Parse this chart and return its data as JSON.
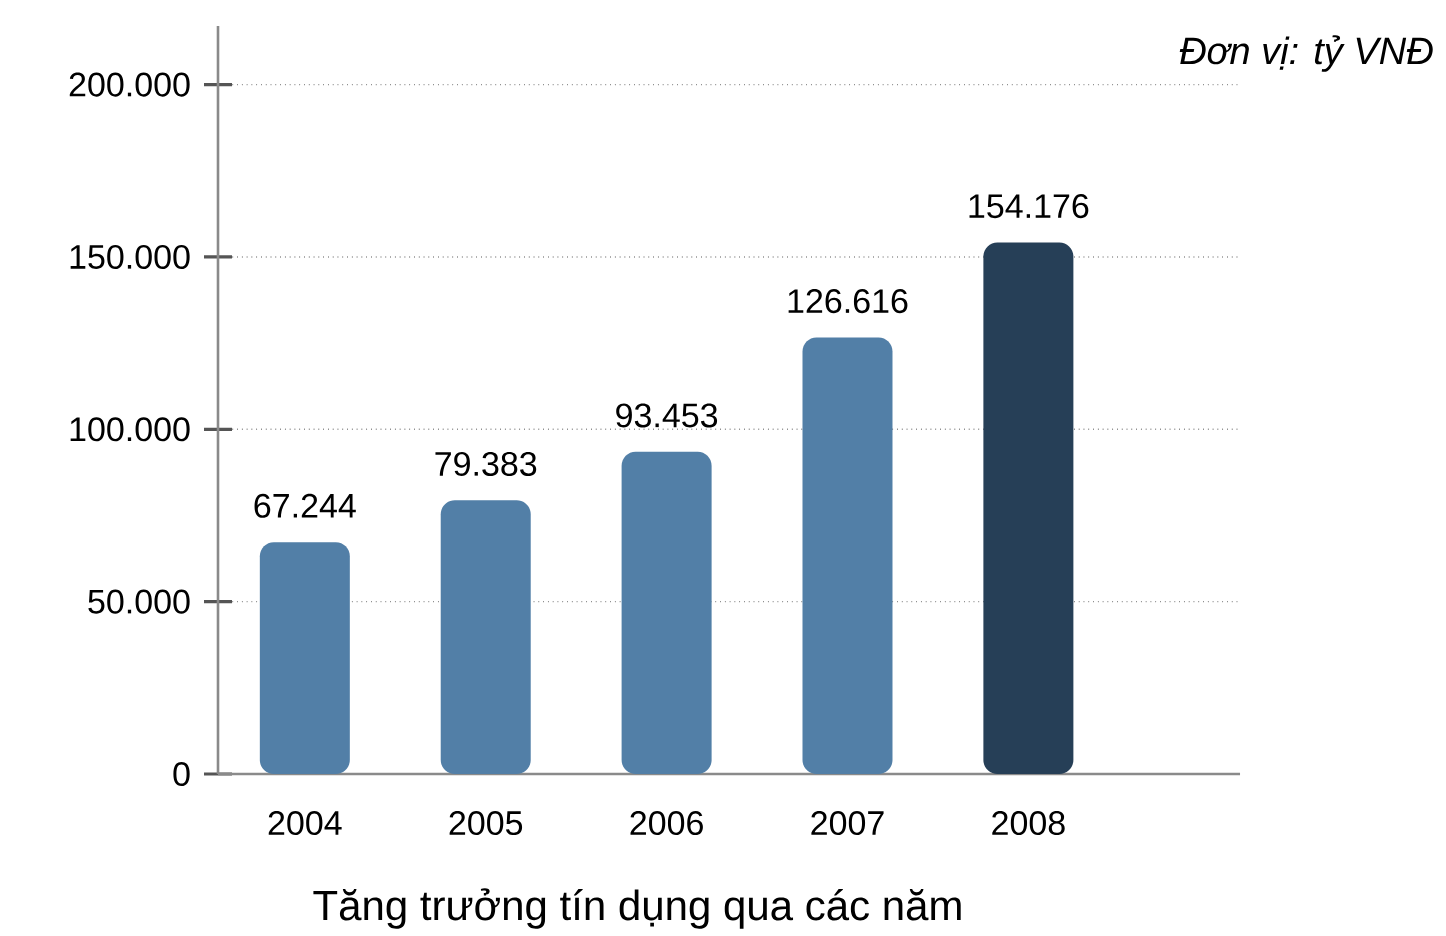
{
  "chart_data": {
    "type": "bar",
    "xlabel": "Tăng trưởng tín dụng qua các năm",
    "ylabel": "Đơn vị: tỷ VNĐ",
    "categories": [
      "2004",
      "2005",
      "2006",
      "2007",
      "2008"
    ],
    "values": [
      67244,
      79383,
      93453,
      126616,
      154176
    ],
    "colors": [
      "#527fa7",
      "#527fa7",
      "#527fa7",
      "#527fa7",
      "#263f57"
    ],
    "value_labels": [
      "67.244",
      "79.383",
      "93.453",
      "126.616",
      "154.176"
    ],
    "ylim": [
      0,
      217000
    ],
    "yticks": [
      0,
      {
        "value": 50000,
        "label": "50.000"
      },
      {
        "value": 100000,
        "label": "100.000"
      },
      {
        "value": 150000,
        "label": "150.000"
      },
      {
        "value": 200000,
        "label": "200.000"
      }
    ],
    "grid": "y"
  }
}
